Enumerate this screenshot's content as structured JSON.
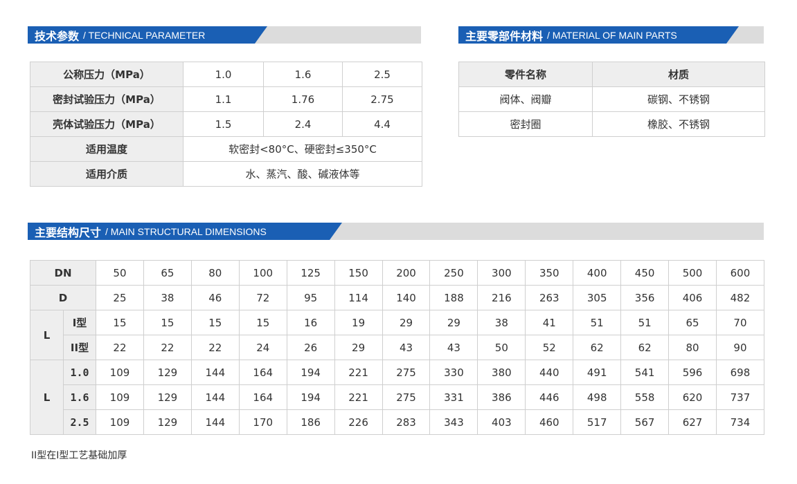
{
  "tech": {
    "title_cn": "技术参数",
    "title_en": "/ TECHNICAL PARAMETER",
    "rows": [
      {
        "label": "公称压力（MPa）",
        "values": [
          "1.0",
          "1.6",
          "2.5"
        ]
      },
      {
        "label": "密封试验压力（MPa）",
        "values": [
          "1.1",
          "1.76",
          "2.75"
        ]
      },
      {
        "label": "壳体试验压力（MPa）",
        "values": [
          "1.5",
          "2.4",
          "4.4"
        ]
      },
      {
        "label": "适用温度",
        "value": "软密封<80°C、硬密封≤350°C"
      },
      {
        "label": "适用介质",
        "value": "水、蒸汽、酸、碱液体等"
      }
    ]
  },
  "material": {
    "title_cn": "主要零部件材料",
    "title_en": "/ MATERIAL OF MAIN PARTS",
    "headers": [
      "零件名称",
      "材质"
    ],
    "rows": [
      [
        "阀体、阀瓣",
        "碳钢、不锈钢"
      ],
      [
        "密封圈",
        "橡胶、不锈钢"
      ]
    ]
  },
  "dims": {
    "title_cn": "主要结构尺寸",
    "title_en": "/ MAIN STRUCTURAL DIMENSIONS",
    "dn_label": "DN",
    "d_label": "D",
    "l_label": "L",
    "dn": [
      "50",
      "65",
      "80",
      "100",
      "125",
      "150",
      "200",
      "250",
      "300",
      "350",
      "400",
      "450",
      "500",
      "600"
    ],
    "d": [
      "25",
      "38",
      "46",
      "72",
      "95",
      "114",
      "140",
      "188",
      "216",
      "263",
      "305",
      "356",
      "406",
      "482"
    ],
    "thickness": [
      {
        "label": "I型",
        "values": [
          "15",
          "15",
          "15",
          "15",
          "16",
          "19",
          "29",
          "29",
          "38",
          "41",
          "51",
          "51",
          "65",
          "70"
        ]
      },
      {
        "label": "II型",
        "values": [
          "22",
          "22",
          "22",
          "24",
          "26",
          "29",
          "43",
          "43",
          "50",
          "52",
          "62",
          "62",
          "80",
          "90"
        ]
      }
    ],
    "length": [
      {
        "label": "1.0",
        "values": [
          "109",
          "129",
          "144",
          "164",
          "194",
          "221",
          "275",
          "330",
          "380",
          "440",
          "491",
          "541",
          "596",
          "698"
        ]
      },
      {
        "label": "1.6",
        "values": [
          "109",
          "129",
          "144",
          "164",
          "194",
          "221",
          "275",
          "331",
          "386",
          "446",
          "498",
          "558",
          "620",
          "737"
        ]
      },
      {
        "label": "2.5",
        "values": [
          "109",
          "129",
          "144",
          "170",
          "186",
          "226",
          "283",
          "343",
          "403",
          "460",
          "517",
          "567",
          "627",
          "734"
        ]
      }
    ],
    "note": "II型在I型工艺基础加厚"
  },
  "colors": {
    "accent": "#1a5fb4",
    "header_gray": "#dcdcdc",
    "label_bg": "#eeeeee"
  }
}
